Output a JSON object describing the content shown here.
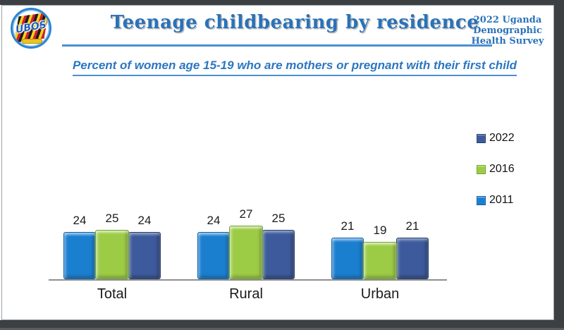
{
  "header": {
    "title": "Teenage childbearing by residence",
    "corner_lines": [
      "2022 Uganda",
      "Demographic",
      "Health Survey"
    ],
    "logo_text": "UBOS",
    "subtitle": "Percent of women age 15-19 who are mothers or pregnant with their first child"
  },
  "colors": {
    "title_blue": "#2a72b8",
    "underline_blue": "#4a8fd3",
    "bar_2011": "#1b7fd0",
    "bar_2016": "#9ccb45",
    "bar_2022": "#3d5a9c",
    "viewer_background": "#3c4043",
    "axis_gray": "#8f8f8f"
  },
  "chart_data": {
    "type": "bar",
    "title": "Teenage childbearing by residence",
    "subtitle": "Percent of women age 15-19 who are mothers or pregnant with their first child",
    "categories": [
      "Total",
      "Rural",
      "Urban"
    ],
    "series": [
      {
        "name": "2011",
        "color": "#1b7fd0",
        "values": [
          24,
          24,
          21
        ]
      },
      {
        "name": "2016",
        "color": "#9ccb45",
        "values": [
          25,
          27,
          19
        ]
      },
      {
        "name": "2022",
        "color": "#3d5a9c",
        "values": [
          24,
          25,
          21
        ]
      }
    ],
    "legend": [
      "2022",
      "2016",
      "2011"
    ],
    "legend_position": "right",
    "grid": false,
    "data_labels": true,
    "ylim": [
      0,
      30
    ],
    "xlabel": "",
    "ylabel": ""
  }
}
